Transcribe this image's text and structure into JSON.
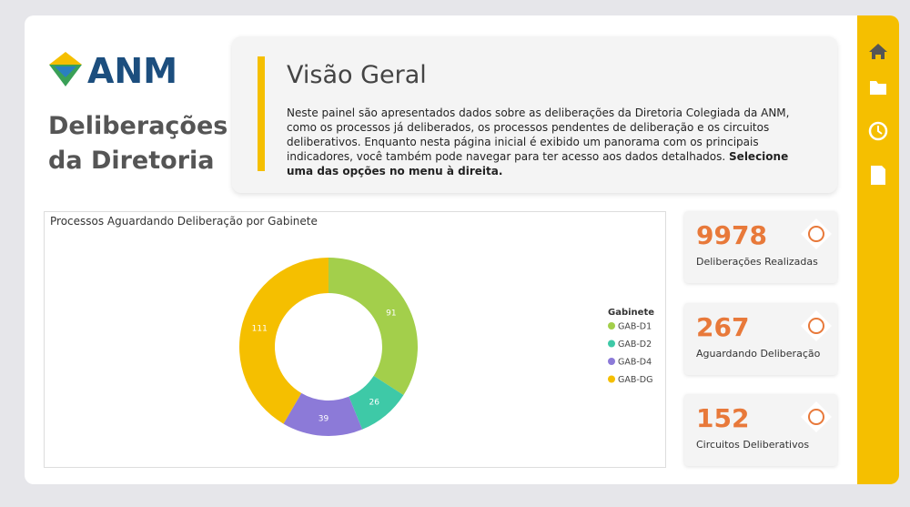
{
  "logo": "ANM",
  "header": {
    "title_lines": [
      "Deliberações",
      "da Diretoria"
    ]
  },
  "intro": {
    "title": "Visão Geral",
    "text": "Neste painel são apresentados dados sobre as deliberações da Diretoria Colegiada da ANM, como os processos já deliberados, os processos pendentes de deliberação e os circuitos deliberativos. Enquanto nesta página inicial é exibido um panorama com os principais indicadores, você também pode navegar para ter acesso aos dados detalhados.",
    "text_bold": "Selecione uma das opções no menu à direita."
  },
  "chart_data": {
    "type": "donut",
    "title": "Processos Aguardando Deliberação por Gabinete",
    "legend_title": "Gabinete",
    "categories": [
      "GAB-D1",
      "GAB-D2",
      "GAB-D4",
      "GAB-DG"
    ],
    "values": [
      91,
      26,
      39,
      111
    ],
    "colors": [
      "#a3cf4b",
      "#3ec9a7",
      "#8c7ad8",
      "#f5bf00"
    ]
  },
  "kpis": [
    {
      "value": 9978,
      "label": "Deliberações Realizadas"
    },
    {
      "value": 267,
      "label": "Aguardando Deliberação"
    },
    {
      "value": 152,
      "label": "Circuitos Deliberativos"
    }
  ]
}
